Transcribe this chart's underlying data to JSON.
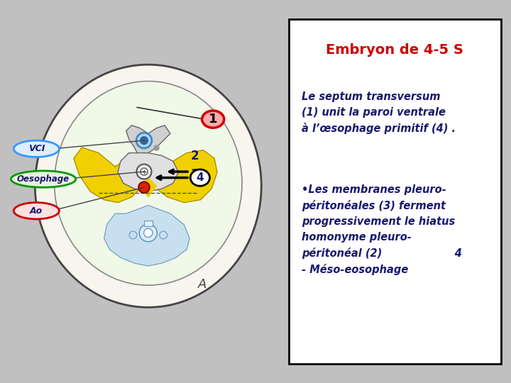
{
  "bg_color": "#c0c0c0",
  "panel_bg": "#ffffff",
  "right_panel_border": "#000000",
  "title": "Embryon de 4-5 S",
  "title_color": "#cc0000",
  "text_color": "#1a1a6e",
  "text1": "Le septum transversum\n(1) unit la paroi ventrale\nà l’œsophage primitif (4) .",
  "text2": "•Les membranes pleuro-\npéritonéales (3) ferment\nprogressivement le hiatus\nhomonyme pleuro-\npéritonéal (2)                    4\n- Méso-eosophage",
  "label_VCI": "VCI",
  "label_VCI_bg": "#ddeeff",
  "label_VCI_border": "#3399ff",
  "label_Oesophage": "Oesophage",
  "label_Oesophage_bg": "#e8f0e0",
  "label_Oesophage_border": "#009900",
  "label_Ao": "Ao",
  "label_Ao_bg": "#ffe0e0",
  "label_Ao_border": "#cc0000",
  "num1_bg": "#ffaaaa",
  "num1_border": "#cc0000",
  "num4_border": "#000000"
}
